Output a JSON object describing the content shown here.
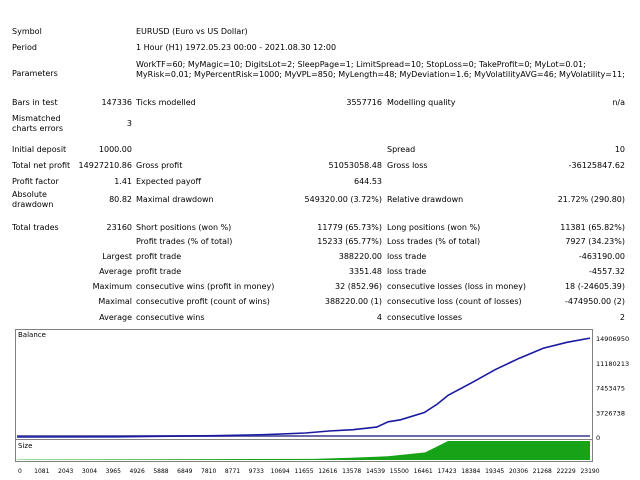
{
  "report": {
    "symbol_label": "Symbol",
    "symbol_value": "EURUSD (Euro vs US Dollar)",
    "period_label": "Period",
    "period_value": "1 Hour (H1) 1972.05.23 00:00 - 2021.08.30 12:00",
    "parameters_label": "Parameters",
    "parameters_value": "WorkTF=60; MyMagic=10; DigitsLot=2; SleepPage=1; LimitSpread=10; StopLoss=0; TakeProfit=0; MyLot=0.01; MyRisk=0.01; MyPercentRisk=1000; MyVPL=850; MyLength=48; MyDeviation=1.6; MyVolatilityAVG=46; MyVolatility=11;",
    "bars_label": "Bars in test",
    "bars_value": "147336",
    "ticks_label": "Ticks modelled",
    "ticks_value": "3557716",
    "quality_label": "Modelling quality",
    "quality_value": "n/a",
    "mismatch_label_1": "Mismatched",
    "mismatch_label_2": "charts errors",
    "mismatch_value": "3",
    "deposit_label": "Initial deposit",
    "deposit_value": "1000.00",
    "spread_label": "Spread",
    "spread_value": "10",
    "netprofit_label": "Total net profit",
    "netprofit_value": "14927210.86",
    "grossprofit_label": "Gross profit",
    "grossprofit_value": "51053058.48",
    "grossloss_label": "Gross loss",
    "grossloss_value": "-36125847.62",
    "pf_label": "Profit factor",
    "pf_value": "1.41",
    "expected_label": "Expected payoff",
    "expected_value": "644.53",
    "absdd_label_1": "Absolute",
    "absdd_label_2": "drawdown",
    "absdd_value": "80.82",
    "maxdd_label": "Maximal drawdown",
    "maxdd_value": "549320.00 (3.72%)",
    "reldd_label": "Relative drawdown",
    "reldd_value": "21.72% (290.80)",
    "trades_label": "Total trades",
    "trades_value": "23160",
    "short_label": "Short positions (won %)",
    "short_value": "11779 (65.73%)",
    "long_label": "Long positions (won %)",
    "long_value": "11381 (65.82%)",
    "ptrades_label": "Profit trades (% of total)",
    "ptrades_value": "15233 (65.77%)",
    "ltrades_label": "Loss trades (% of total)",
    "ltrades_value": "7927 (34.23%)",
    "largest_label": "Largest",
    "largest_profit_label": "profit trade",
    "largest_profit_value": "388220.00",
    "largest_loss_label": "loss trade",
    "largest_loss_value": "-463190.00",
    "average_label": "Average",
    "average_profit_label": "profit trade",
    "average_profit_value": "3351.48",
    "average_loss_label": "loss trade",
    "average_loss_value": "-4557.32",
    "maximum_label": "Maximum",
    "max_cw_label": "consecutive wins (profit in money)",
    "max_cw_value": "32 (852.96)",
    "max_cl_label": "consecutive losses (loss in money)",
    "max_cl_value": "18 (-24605.39)",
    "maximal_label": "Maximal",
    "maximal_cp_label": "consecutive profit (count of wins)",
    "maximal_cp_value": "388220.00 (1)",
    "maximal_cl_label": "consecutive loss (count of losses)",
    "maximal_cl_value": "-474950.00 (2)",
    "avg2_label": "Average",
    "avg_cw_label": "consecutive wins",
    "avg_cw_value": "4",
    "avg_cl_label": "consecutive losses",
    "avg_cl_value": "2"
  },
  "chart_data": {
    "type": "line",
    "title": "Balance",
    "series": [
      {
        "name": "Balance",
        "x": [
          0,
          4000,
          8000,
          10000,
          11655,
          12616,
          13578,
          14539,
          15000,
          15500,
          16461,
          17000,
          17423,
          18384,
          19345,
          20306,
          21268,
          22229,
          23160
        ],
        "y": [
          1000,
          30000,
          200000,
          350000,
          600000,
          900000,
          1100000,
          1500000,
          2300000,
          2600000,
          3700000,
          5000000,
          6300000,
          8200000,
          10200000,
          11900000,
          13400000,
          14300000,
          14928211
        ]
      }
    ],
    "yticks": [
      "14906950",
      "11180213",
      "7453475",
      "3726738",
      "0"
    ],
    "ylim": [
      0,
      16000000
    ],
    "xlim": [
      0,
      23160
    ],
    "xticks": [
      "0",
      "1081",
      "2043",
      "3004",
      "3965",
      "4926",
      "5888",
      "6849",
      "7810",
      "8771",
      "9733",
      "10694",
      "11655",
      "12616",
      "13578",
      "14539",
      "15500",
      "16461",
      "17423",
      "18384",
      "19345",
      "20306",
      "21268",
      "22229",
      "23190"
    ],
    "size_label": "Size",
    "size_profile": {
      "x": [
        0,
        12000,
        13500,
        15000,
        16500,
        17423,
        23160
      ],
      "v": [
        0.02,
        0.06,
        0.12,
        0.2,
        0.4,
        1.0,
        1.0
      ]
    }
  },
  "colors": {
    "balance_line": "#1a1aa0",
    "size_fill": "#17a317",
    "axis": "#808080",
    "zero_fill": "#6a6aa8"
  }
}
